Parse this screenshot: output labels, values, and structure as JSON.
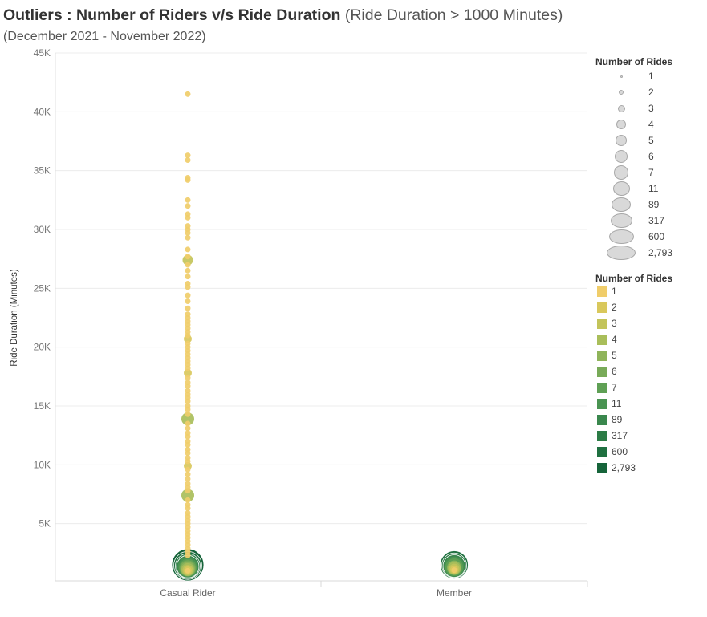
{
  "title": {
    "main": "Outliers : Number of Riders v/s Ride Duration",
    "qualifier": "(Ride Duration > 1000 Minutes)",
    "subtitle": "(December 2021 - November 2022)"
  },
  "legends": {
    "size_title": "Number of Rides",
    "color_title": "Number of Rides",
    "items": [
      {
        "label": "1",
        "color": "#f0cd6a"
      },
      {
        "label": "2",
        "color": "#d9c85c"
      },
      {
        "label": "3",
        "color": "#c3c45a"
      },
      {
        "label": "4",
        "color": "#a9be5a"
      },
      {
        "label": "5",
        "color": "#8fb45a"
      },
      {
        "label": "6",
        "color": "#78aa58"
      },
      {
        "label": "7",
        "color": "#5fa055"
      },
      {
        "label": "11",
        "color": "#4a9452"
      },
      {
        "label": "89",
        "color": "#3a874d"
      },
      {
        "label": "317",
        "color": "#2c7c46"
      },
      {
        "label": "600",
        "color": "#1f7040"
      },
      {
        "label": "2,793",
        "color": "#16643a"
      }
    ]
  },
  "chart_data": {
    "type": "scatter",
    "title": "Outliers : Number of Riders v/s Ride Duration (Ride Duration > 1000 Minutes)",
    "subtitle": "(December 2021 - November 2022)",
    "xlabel": "",
    "ylabel": "Ride Duration (Minutes)",
    "categories": [
      "Casual Rider",
      "Member"
    ],
    "ylim": [
      0,
      45000
    ],
    "yticks": [
      5000,
      10000,
      15000,
      20000,
      25000,
      30000,
      35000,
      40000,
      45000
    ],
    "ytick_labels": [
      "5K",
      "10K",
      "15K",
      "20K",
      "25K",
      "30K",
      "35K",
      "40K",
      "45K"
    ],
    "size_and_color_measure": "Number of Rides",
    "series": [
      {
        "name": "Casual Rider",
        "points": [
          {
            "y": 41500,
            "rides": 1
          },
          {
            "y": 36300,
            "rides": 1
          },
          {
            "y": 35900,
            "rides": 1
          },
          {
            "y": 34400,
            "rides": 1
          },
          {
            "y": 34200,
            "rides": 1
          },
          {
            "y": 32500,
            "rides": 1
          },
          {
            "y": 32000,
            "rides": 1
          },
          {
            "y": 31300,
            "rides": 1
          },
          {
            "y": 31000,
            "rides": 1
          },
          {
            "y": 30300,
            "rides": 1
          },
          {
            "y": 30000,
            "rides": 1
          },
          {
            "y": 29700,
            "rides": 1
          },
          {
            "y": 29300,
            "rides": 1
          },
          {
            "y": 28300,
            "rides": 1
          },
          {
            "y": 27700,
            "rides": 1
          },
          {
            "y": 27400,
            "rides": 3
          },
          {
            "y": 27000,
            "rides": 1
          },
          {
            "y": 26500,
            "rides": 1
          },
          {
            "y": 26000,
            "rides": 1
          },
          {
            "y": 25400,
            "rides": 1
          },
          {
            "y": 25100,
            "rides": 1
          },
          {
            "y": 24400,
            "rides": 1
          },
          {
            "y": 23900,
            "rides": 1
          },
          {
            "y": 23300,
            "rides": 1
          },
          {
            "y": 22800,
            "rides": 1
          },
          {
            "y": 22500,
            "rides": 1
          },
          {
            "y": 22200,
            "rides": 1
          },
          {
            "y": 21900,
            "rides": 1
          },
          {
            "y": 21600,
            "rides": 1
          },
          {
            "y": 21300,
            "rides": 1
          },
          {
            "y": 21000,
            "rides": 1
          },
          {
            "y": 20700,
            "rides": 2
          },
          {
            "y": 20300,
            "rides": 1
          },
          {
            "y": 20000,
            "rides": 1
          },
          {
            "y": 19700,
            "rides": 1
          },
          {
            "y": 19400,
            "rides": 1
          },
          {
            "y": 19100,
            "rides": 1
          },
          {
            "y": 18800,
            "rides": 1
          },
          {
            "y": 18500,
            "rides": 1
          },
          {
            "y": 18200,
            "rides": 1
          },
          {
            "y": 17800,
            "rides": 2
          },
          {
            "y": 17400,
            "rides": 1
          },
          {
            "y": 17000,
            "rides": 1
          },
          {
            "y": 16700,
            "rides": 1
          },
          {
            "y": 16300,
            "rides": 1
          },
          {
            "y": 16000,
            "rides": 1
          },
          {
            "y": 15700,
            "rides": 1
          },
          {
            "y": 15400,
            "rides": 1
          },
          {
            "y": 15000,
            "rides": 1
          },
          {
            "y": 14700,
            "rides": 1
          },
          {
            "y": 14300,
            "rides": 1
          },
          {
            "y": 13900,
            "rides": 4
          },
          {
            "y": 13500,
            "rides": 1
          },
          {
            "y": 13100,
            "rides": 1
          },
          {
            "y": 12700,
            "rides": 1
          },
          {
            "y": 12400,
            "rides": 1
          },
          {
            "y": 12000,
            "rides": 1
          },
          {
            "y": 11700,
            "rides": 1
          },
          {
            "y": 11300,
            "rides": 1
          },
          {
            "y": 11000,
            "rides": 1
          },
          {
            "y": 10600,
            "rides": 1
          },
          {
            "y": 10300,
            "rides": 1
          },
          {
            "y": 9900,
            "rides": 2
          },
          {
            "y": 9600,
            "rides": 1
          },
          {
            "y": 9200,
            "rides": 1
          },
          {
            "y": 8800,
            "rides": 1
          },
          {
            "y": 8400,
            "rides": 1
          },
          {
            "y": 8100,
            "rides": 1
          },
          {
            "y": 7800,
            "rides": 1
          },
          {
            "y": 7400,
            "rides": 4
          },
          {
            "y": 7000,
            "rides": 1
          },
          {
            "y": 6600,
            "rides": 1
          },
          {
            "y": 6300,
            "rides": 1
          },
          {
            "y": 5900,
            "rides": 1
          },
          {
            "y": 5600,
            "rides": 1
          },
          {
            "y": 5300,
            "rides": 1
          },
          {
            "y": 5000,
            "rides": 1
          },
          {
            "y": 4700,
            "rides": 1
          },
          {
            "y": 4400,
            "rides": 1
          },
          {
            "y": 4100,
            "rides": 1
          },
          {
            "y": 3800,
            "rides": 1
          },
          {
            "y": 3500,
            "rides": 1
          },
          {
            "y": 3200,
            "rides": 1
          },
          {
            "y": 2900,
            "rides": 1
          },
          {
            "y": 2600,
            "rides": 1
          },
          {
            "y": 2300,
            "rides": 1
          },
          {
            "y": 1500,
            "rides": 2793
          },
          {
            "y": 1450,
            "rides": 600
          },
          {
            "y": 1400,
            "rides": 317
          },
          {
            "y": 1350,
            "rides": 89
          },
          {
            "y": 1300,
            "rides": 11
          },
          {
            "y": 1250,
            "rides": 7
          },
          {
            "y": 1200,
            "rides": 6
          },
          {
            "y": 1150,
            "rides": 5
          },
          {
            "y": 1100,
            "rides": 4
          },
          {
            "y": 1050,
            "rides": 3
          },
          {
            "y": 1020,
            "rides": 2
          },
          {
            "y": 1000,
            "rides": 1
          }
        ]
      },
      {
        "name": "Member",
        "points": [
          {
            "y": 1500,
            "rides": 600
          },
          {
            "y": 1450,
            "rides": 317
          },
          {
            "y": 1400,
            "rides": 89
          },
          {
            "y": 1350,
            "rides": 11
          },
          {
            "y": 1300,
            "rides": 7
          },
          {
            "y": 1250,
            "rides": 5
          },
          {
            "y": 1200,
            "rides": 4
          },
          {
            "y": 1150,
            "rides": 3
          },
          {
            "y": 1100,
            "rides": 2
          },
          {
            "y": 1050,
            "rides": 1
          }
        ]
      }
    ]
  }
}
